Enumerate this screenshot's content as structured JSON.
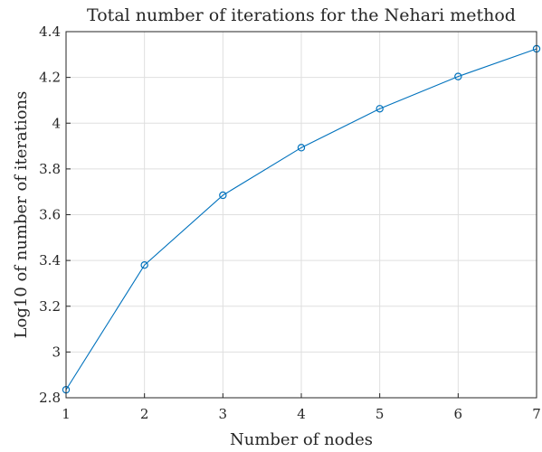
{
  "chart_data": {
    "type": "line",
    "title": "Total number of iterations for the Nehari method",
    "xlabel": "Number of nodes",
    "ylabel": "Log10 of number of iterations",
    "xlim": [
      1,
      7
    ],
    "ylim": [
      2.8,
      4.4
    ],
    "xticks": [
      1,
      2,
      3,
      4,
      5,
      6,
      7
    ],
    "xtick_labels": [
      "1",
      "2",
      "3",
      "4",
      "5",
      "6",
      "7"
    ],
    "yticks": [
      2.8,
      3.0,
      3.2,
      3.4,
      3.6,
      3.8,
      4.0,
      4.2,
      4.4
    ],
    "ytick_labels": [
      "2.8",
      "3",
      "3.2",
      "3.4",
      "3.6",
      "3.8",
      "4",
      "4.2",
      "4.4"
    ],
    "grid": true,
    "series": [
      {
        "x": [
          1,
          2,
          3,
          4,
          5,
          6,
          7
        ],
        "values": [
          2.835,
          3.38,
          3.685,
          3.893,
          4.063,
          4.204,
          4.325
        ],
        "color": "#0072bd",
        "marker": "circle"
      }
    ]
  }
}
